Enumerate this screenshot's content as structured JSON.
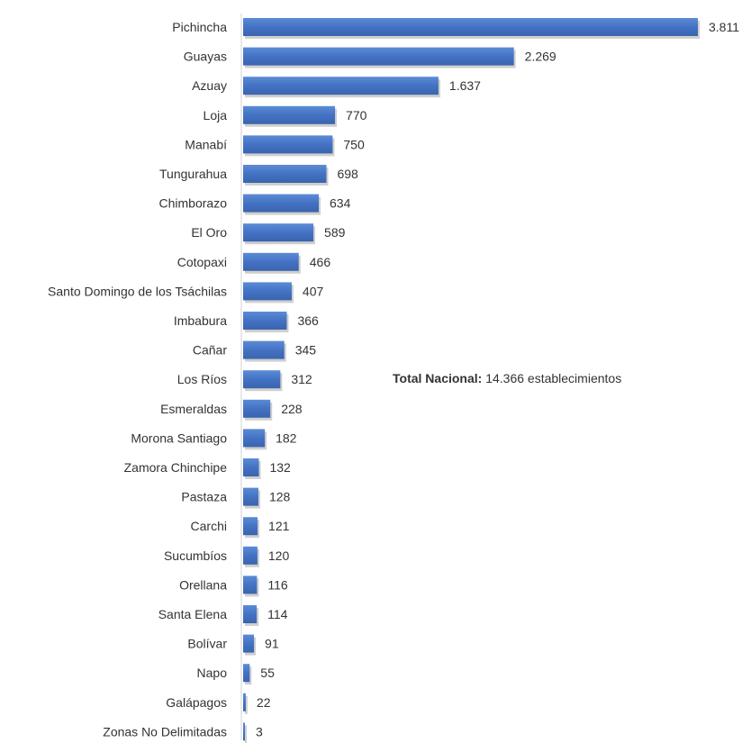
{
  "chart_data": {
    "type": "bar",
    "orientation": "horizontal",
    "title": "",
    "xlabel": "",
    "ylabel": "",
    "bar_color": "#4472C4",
    "grid": false,
    "categories": [
      "Pichincha",
      "Guayas",
      "Azuay",
      "Loja",
      "Manabí",
      "Tungurahua",
      "Chimborazo",
      "El Oro",
      "Cotopaxi",
      "Santo Domingo de los Tsáchilas",
      "Imbabura",
      "Cañar",
      "Los Ríos",
      "Esmeraldas",
      "Morona Santiago",
      "Zamora Chinchipe",
      "Pastaza",
      "Carchi",
      "Sucumbíos",
      "Orellana",
      "Santa Elena",
      "Bolívar",
      "Napo",
      "Galápagos",
      "Zonas No Delimitadas"
    ],
    "values": [
      3811,
      2269,
      1637,
      770,
      750,
      698,
      634,
      589,
      466,
      407,
      366,
      345,
      312,
      228,
      182,
      132,
      128,
      121,
      120,
      116,
      114,
      91,
      55,
      22,
      3
    ],
    "value_labels": [
      "3.811",
      "2.269",
      "1.637",
      "770",
      "750",
      "698",
      "634",
      "589",
      "466",
      "407",
      "366",
      "345",
      "312",
      "228",
      "182",
      "132",
      "128",
      "121",
      "120",
      "116",
      "114",
      "91",
      "55",
      "22",
      "3"
    ]
  },
  "annotation": {
    "label": "Total Nacional:",
    "text": "14.366 establecimientos"
  }
}
